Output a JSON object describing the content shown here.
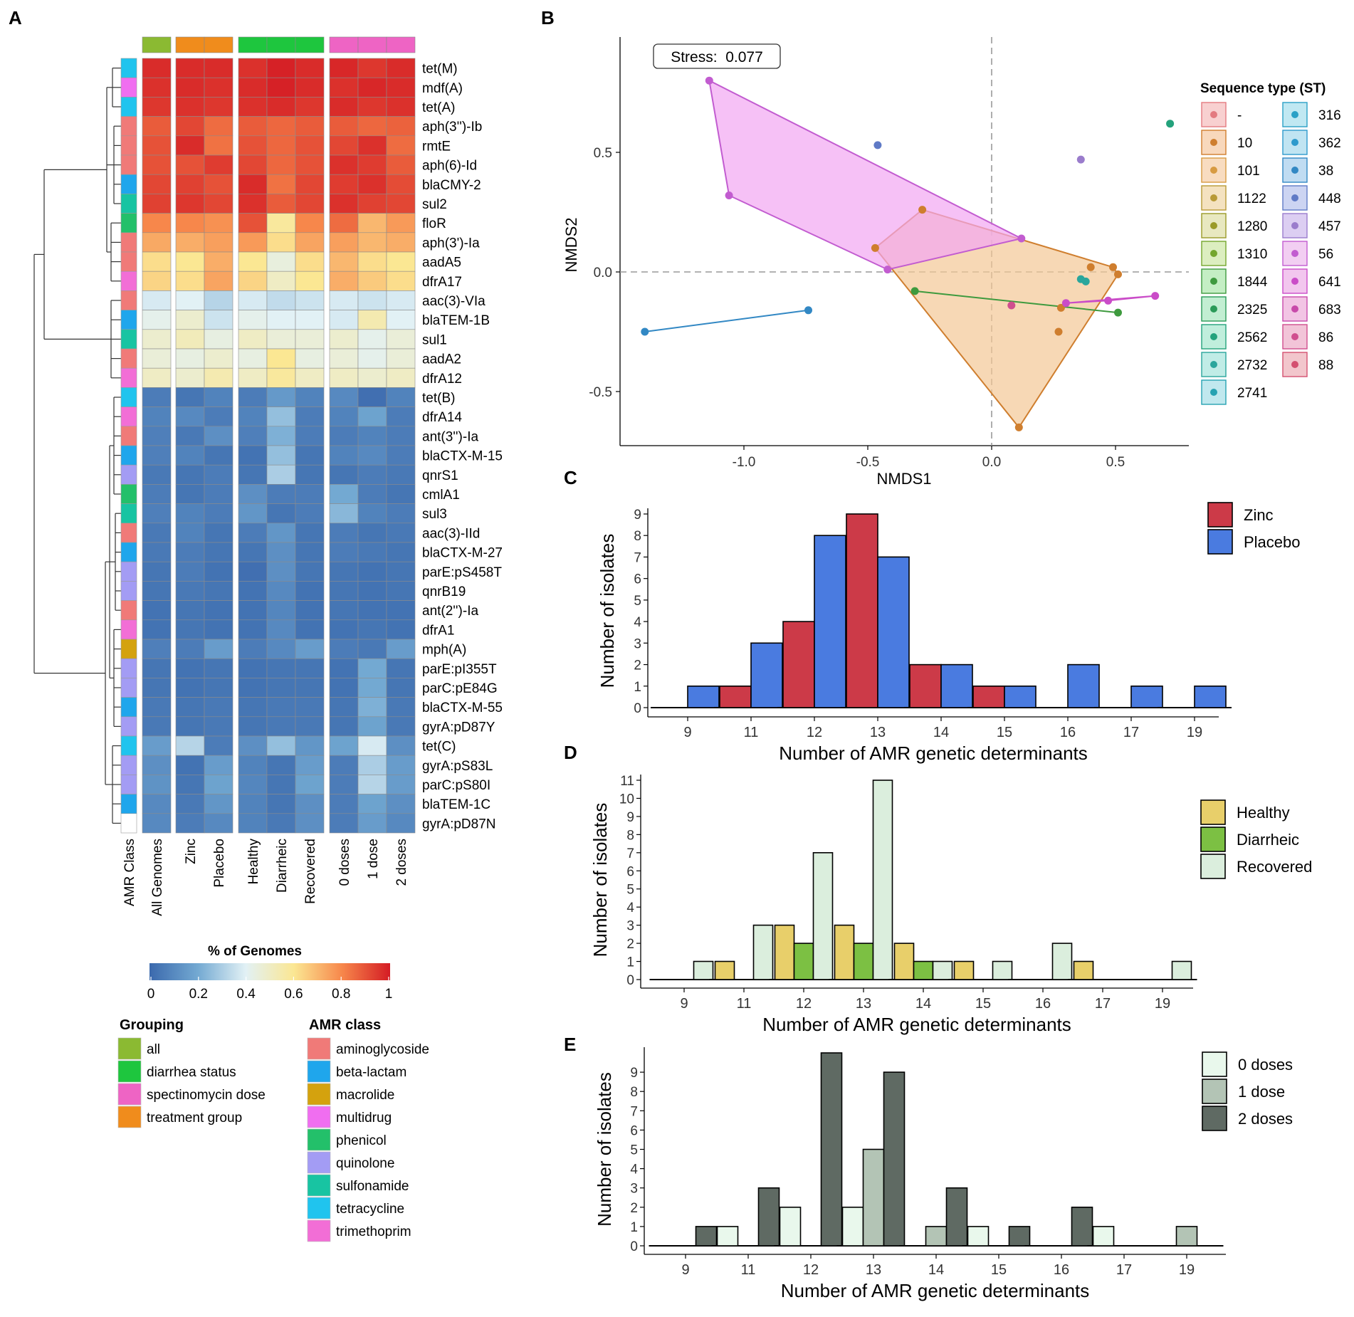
{
  "panel_labels": [
    "A",
    "B",
    "C",
    "D",
    "E"
  ],
  "chart_data": [
    {
      "panel": "A",
      "type": "heatmap",
      "columns": [
        "All Genomes",
        "Zinc",
        "Placebo",
        "Healthy",
        "Diarrheic",
        "Recovered",
        "0 doses",
        "1 dose",
        "2 doses"
      ],
      "row_label_column": "AMR Class",
      "column_groups": [
        {
          "name": "all",
          "columns": [
            "All Genomes"
          ]
        },
        {
          "name": "treatment group",
          "columns": [
            "Zinc",
            "Placebo"
          ]
        },
        {
          "name": "diarrhea status",
          "columns": [
            "Healthy",
            "Diarrheic",
            "Recovered"
          ]
        },
        {
          "name": "spectinomycin dose",
          "columns": [
            "0 doses",
            "1 dose",
            "2 doses"
          ]
        }
      ],
      "rows": [
        "tet(M)",
        "mdf(A)",
        "tet(A)",
        "aph(3'')-Ib",
        "rmtE",
        "aph(6)-Id",
        "blaCMY-2",
        "sul2",
        "floR",
        "aph(3')-Ia",
        "aadA5",
        "dfrA17",
        "aac(3)-VIa",
        "blaTEM-1B",
        "sul1",
        "aadA2",
        "dfrA12",
        "tet(B)",
        "dfrA14",
        "ant(3'')-Ia",
        "blaCTX-M-15",
        "qnrS1",
        "cmlA1",
        "sul3",
        "aac(3)-IId",
        "blaCTX-M-27",
        "parE:pS458T",
        "qnrB19",
        "ant(2'')-Ia",
        "dfrA1",
        "mph(A)",
        "parE:pI355T",
        "parC:pE84G",
        "blaCTX-M-55",
        "gyrA:pD87Y",
        "tet(C)",
        "gyrA:pS83L",
        "parC:pS80I",
        "blaTEM-1C",
        "gyrA:pD87N"
      ],
      "row_classes": [
        "tetracycline",
        "multidrug",
        "tetracycline",
        "aminoglycoside",
        "aminoglycoside",
        "aminoglycoside",
        "beta-lactam",
        "sulfonamide",
        "phenicol",
        "aminoglycoside",
        "aminoglycoside",
        "trimethoprim",
        "aminoglycoside",
        "beta-lactam",
        "sulfonamide",
        "aminoglycoside",
        "trimethoprim",
        "tetracycline",
        "trimethoprim",
        "aminoglycoside",
        "beta-lactam",
        "quinolone",
        "phenicol",
        "sulfonamide",
        "aminoglycoside",
        "beta-lactam",
        "quinolone",
        "quinolone",
        "aminoglycoside",
        "trimethoprim",
        "macrolide",
        "quinolone",
        "quinolone",
        "beta-lactam",
        "quinolone",
        "tetracycline",
        "quinolone",
        "quinolone",
        "beta-lactam",
        ""
      ],
      "values": [
        [
          0.97,
          0.97,
          0.97,
          0.96,
          0.99,
          0.97,
          0.98,
          0.95,
          0.97
        ],
        [
          0.96,
          0.97,
          0.96,
          0.97,
          0.99,
          0.97,
          0.96,
          0.98,
          0.97
        ],
        [
          0.95,
          0.96,
          0.95,
          0.96,
          0.97,
          0.95,
          0.97,
          0.95,
          0.96
        ],
        [
          0.88,
          0.92,
          0.85,
          0.88,
          0.86,
          0.88,
          0.88,
          0.86,
          0.87
        ],
        [
          0.9,
          0.97,
          0.84,
          0.9,
          0.86,
          0.9,
          0.92,
          0.96,
          0.85
        ],
        [
          0.9,
          0.9,
          0.94,
          0.92,
          0.86,
          0.9,
          0.96,
          0.94,
          0.88
        ],
        [
          0.92,
          0.93,
          0.9,
          0.97,
          0.84,
          0.92,
          0.94,
          0.96,
          0.91
        ],
        [
          0.93,
          0.95,
          0.92,
          0.96,
          0.88,
          0.92,
          0.96,
          0.93,
          0.92
        ],
        [
          0.8,
          0.8,
          0.78,
          0.9,
          0.58,
          0.8,
          0.85,
          0.7,
          0.76
        ],
        [
          0.73,
          0.72,
          0.75,
          0.76,
          0.62,
          0.74,
          0.75,
          0.7,
          0.72
        ],
        [
          0.62,
          0.6,
          0.72,
          0.6,
          0.45,
          0.62,
          0.7,
          0.62,
          0.6
        ],
        [
          0.64,
          0.62,
          0.74,
          0.64,
          0.5,
          0.6,
          0.72,
          0.66,
          0.62
        ],
        [
          0.38,
          0.4,
          0.32,
          0.38,
          0.34,
          0.36,
          0.38,
          0.36,
          0.38
        ],
        [
          0.42,
          0.48,
          0.36,
          0.42,
          0.4,
          0.4,
          0.38,
          0.54,
          0.4
        ],
        [
          0.48,
          0.52,
          0.44,
          0.5,
          0.46,
          0.46,
          0.48,
          0.42,
          0.46
        ],
        [
          0.46,
          0.44,
          0.48,
          0.44,
          0.6,
          0.44,
          0.46,
          0.42,
          0.46
        ],
        [
          0.5,
          0.48,
          0.54,
          0.5,
          0.58,
          0.5,
          0.5,
          0.48,
          0.5
        ],
        [
          0.06,
          0.04,
          0.08,
          0.06,
          0.15,
          0.08,
          0.1,
          0.02,
          0.08
        ],
        [
          0.08,
          0.1,
          0.06,
          0.08,
          0.26,
          0.06,
          0.08,
          0.18,
          0.06
        ],
        [
          0.07,
          0.05,
          0.12,
          0.07,
          0.22,
          0.06,
          0.06,
          0.08,
          0.06
        ],
        [
          0.07,
          0.08,
          0.04,
          0.03,
          0.26,
          0.04,
          0.08,
          0.1,
          0.06
        ],
        [
          0.05,
          0.04,
          0.06,
          0.04,
          0.3,
          0.04,
          0.04,
          0.06,
          0.05
        ],
        [
          0.06,
          0.04,
          0.06,
          0.12,
          0.06,
          0.06,
          0.2,
          0.06,
          0.04
        ],
        [
          0.07,
          0.08,
          0.06,
          0.14,
          0.04,
          0.06,
          0.24,
          0.08,
          0.06
        ],
        [
          0.05,
          0.08,
          0.04,
          0.06,
          0.14,
          0.04,
          0.06,
          0.04,
          0.05
        ],
        [
          0.05,
          0.06,
          0.04,
          0.04,
          0.12,
          0.04,
          0.06,
          0.05,
          0.04
        ],
        [
          0.04,
          0.06,
          0.03,
          0.02,
          0.12,
          0.04,
          0.04,
          0.03,
          0.04
        ],
        [
          0.04,
          0.05,
          0.04,
          0.03,
          0.1,
          0.03,
          0.04,
          0.03,
          0.04
        ],
        [
          0.03,
          0.04,
          0.03,
          0.03,
          0.09,
          0.03,
          0.04,
          0.03,
          0.03
        ],
        [
          0.03,
          0.04,
          0.03,
          0.03,
          0.1,
          0.03,
          0.03,
          0.04,
          0.03
        ],
        [
          0.07,
          0.06,
          0.16,
          0.06,
          0.1,
          0.16,
          0.06,
          0.05,
          0.16
        ],
        [
          0.04,
          0.03,
          0.04,
          0.03,
          0.04,
          0.04,
          0.03,
          0.2,
          0.04
        ],
        [
          0.04,
          0.03,
          0.04,
          0.03,
          0.04,
          0.04,
          0.03,
          0.2,
          0.04
        ],
        [
          0.05,
          0.04,
          0.05,
          0.04,
          0.05,
          0.05,
          0.04,
          0.22,
          0.05
        ],
        [
          0.05,
          0.04,
          0.05,
          0.04,
          0.05,
          0.05,
          0.04,
          0.18,
          0.05
        ],
        [
          0.16,
          0.32,
          0.06,
          0.12,
          0.26,
          0.14,
          0.18,
          0.38,
          0.12
        ],
        [
          0.12,
          0.03,
          0.16,
          0.08,
          0.04,
          0.16,
          0.06,
          0.3,
          0.16
        ],
        [
          0.13,
          0.04,
          0.18,
          0.09,
          0.04,
          0.18,
          0.06,
          0.32,
          0.16
        ],
        [
          0.1,
          0.05,
          0.14,
          0.08,
          0.04,
          0.12,
          0.06,
          0.18,
          0.12
        ],
        [
          0.1,
          0.06,
          0.1,
          0.08,
          0.05,
          0.12,
          0.06,
          0.16,
          0.1
        ]
      ],
      "colorbar": {
        "title": "% of Genomes",
        "ticks": [
          "0",
          "0.2",
          "0.4",
          "0.6",
          "0.8",
          "1"
        ],
        "range": [
          0,
          1
        ]
      },
      "legend_grouping": {
        "title": "Grouping",
        "items": [
          "all",
          "diarrhea status",
          "spectinomycin dose",
          "treatment group"
        ]
      },
      "legend_amr_class": {
        "title": "AMR class",
        "items": [
          "aminoglycoside",
          "beta-lactam",
          "macrolide",
          "multidrug",
          "phenicol",
          "quinolone",
          "sulfonamide",
          "tetracycline",
          "trimethoprim"
        ]
      }
    },
    {
      "panel": "B",
      "type": "scatter",
      "xlabel": "NMDS1",
      "ylabel": "NMDS2",
      "xlim": [
        -1.5,
        0.82
      ],
      "ylim": [
        -0.73,
        0.98
      ],
      "xticks": [
        "-1.0",
        "-0.5",
        "0.0",
        "0.5"
      ],
      "yticks": [
        "-0.5",
        "0.0",
        "0.5"
      ],
      "annotation": "Stress:  0.077",
      "legend_title": "Sequence type (ST)",
      "legend_entries": [
        "-",
        "10",
        "101",
        "1122",
        "1280",
        "1310",
        "1844",
        "2325",
        "2562",
        "2732",
        "2741",
        "316",
        "362",
        "38",
        "448",
        "457",
        "56",
        "641",
        "683",
        "86",
        "88"
      ],
      "points": [
        {
          "st": "56",
          "x": -1.14,
          "y": 0.8
        },
        {
          "st": "56",
          "x": -1.06,
          "y": 0.32
        },
        {
          "st": "56",
          "x": -0.42,
          "y": 0.01
        },
        {
          "st": "56",
          "x": 0.12,
          "y": 0.14
        },
        {
          "st": "448",
          "x": -0.46,
          "y": 0.53
        },
        {
          "st": "457",
          "x": 0.36,
          "y": 0.47
        },
        {
          "st": "2562",
          "x": 0.72,
          "y": 0.62
        },
        {
          "st": "10",
          "x": -0.28,
          "y": 0.26
        },
        {
          "st": "10",
          "x": -0.47,
          "y": 0.1
        },
        {
          "st": "10",
          "x": 0.4,
          "y": 0.02
        },
        {
          "st": "10",
          "x": 0.49,
          "y": 0.02
        },
        {
          "st": "10",
          "x": 0.51,
          "y": -0.01
        },
        {
          "st": "10",
          "x": 0.28,
          "y": -0.15
        },
        {
          "st": "10",
          "x": 0.27,
          "y": -0.25
        },
        {
          "st": "10",
          "x": 0.11,
          "y": -0.65
        },
        {
          "st": "2732",
          "x": 0.36,
          "y": -0.03
        },
        {
          "st": "2732",
          "x": 0.38,
          "y": -0.04
        },
        {
          "st": "1844",
          "x": -0.31,
          "y": -0.08
        },
        {
          "st": "1844",
          "x": 0.51,
          "y": -0.17
        },
        {
          "st": "38",
          "x": -0.74,
          "y": -0.16
        },
        {
          "st": "38",
          "x": -1.4,
          "y": -0.25
        },
        {
          "st": "86",
          "x": 0.08,
          "y": -0.14
        },
        {
          "st": "641",
          "x": 0.3,
          "y": -0.13
        },
        {
          "st": "641",
          "x": 0.47,
          "y": -0.12
        },
        {
          "st": "641",
          "x": 0.66,
          "y": -0.1
        }
      ]
    },
    {
      "panel": "C",
      "type": "bar",
      "categories": [
        "9",
        "11",
        "12",
        "13",
        "14",
        "15",
        "16",
        "17",
        "19"
      ],
      "series": [
        {
          "name": "Zinc",
          "color": "#cc3a48",
          "values": [
            0,
            1,
            4,
            9,
            2,
            1,
            0,
            0,
            0
          ]
        },
        {
          "name": "Placebo",
          "color": "#4a7be0",
          "values": [
            1,
            3,
            8,
            7,
            2,
            1,
            2,
            1,
            1
          ]
        }
      ],
      "xlabel": "Number of AMR genetic determinants",
      "ylabel": "Number of isolates",
      "ylim": [
        0,
        9
      ],
      "yticks": [
        "0",
        "1",
        "2",
        "3",
        "4",
        "5",
        "6",
        "7",
        "8",
        "9"
      ]
    },
    {
      "panel": "D",
      "type": "bar",
      "categories": [
        "9",
        "11",
        "12",
        "13",
        "14",
        "15",
        "16",
        "17",
        "19"
      ],
      "series": [
        {
          "name": "Healthy",
          "color": "#e8cf6a",
          "values": [
            0,
            1,
            3,
            3,
            2,
            1,
            0,
            1,
            0
          ]
        },
        {
          "name": "Diarrheic",
          "color": "#7cc043",
          "values": [
            0,
            0,
            2,
            2,
            1,
            0,
            0,
            0,
            0
          ]
        },
        {
          "name": "Recovered",
          "color": "#dbeedd",
          "values": [
            1,
            3,
            7,
            11,
            1,
            1,
            2,
            0,
            1
          ]
        }
      ],
      "xlabel": "Number of AMR genetic determinants",
      "ylabel": "Number of isolates",
      "ylim": [
        0,
        11
      ],
      "yticks": [
        "0",
        "1",
        "2",
        "3",
        "4",
        "5",
        "6",
        "7",
        "8",
        "9",
        "10",
        "11"
      ]
    },
    {
      "panel": "E",
      "type": "bar",
      "categories": [
        "9",
        "11",
        "12",
        "13",
        "14",
        "15",
        "16",
        "17",
        "19"
      ],
      "series": [
        {
          "name": "0 doses",
          "color": "#e9f8ec",
          "values": [
            0,
            1,
            2,
            2,
            0,
            1,
            0,
            1,
            0
          ]
        },
        {
          "name": "1 dose",
          "color": "#b3c4b5",
          "values": [
            0,
            0,
            0,
            5,
            1,
            0,
            0,
            0,
            1
          ]
        },
        {
          "name": "2 doses",
          "color": "#5f6a63",
          "values": [
            1,
            3,
            10,
            9,
            3,
            1,
            2,
            0,
            0
          ]
        }
      ],
      "xlabel": "Number of AMR genetic determinants",
      "ylabel": "Number of isolates",
      "ylim": [
        0,
        10
      ],
      "yticks": [
        "0",
        "1",
        "2",
        "3",
        "4",
        "5",
        "6",
        "7",
        "8",
        "9"
      ]
    }
  ],
  "colors": {
    "grouping": {
      "all": "#8bba32",
      "diarrhea status": "#1ec63e",
      "spectinomycin dose": "#ee64c4",
      "treatment group": "#f08c1c"
    },
    "amr_class": {
      "aminoglycoside": "#f07a78",
      "beta-lactam": "#1fa6ec",
      "macrolide": "#d4a20e",
      "multidrug": "#f06ef0",
      "phenicol": "#23c06a",
      "quinolone": "#a39cf4",
      "sulfonamide": "#18c4a2",
      "tetracycline": "#20c4ee",
      "trimethoprim": "#f26ed6"
    },
    "st": {
      "-": "#e37a80",
      "10": "#cf7e2e",
      "101": "#d79b42",
      "1122": "#b89a36",
      "1280": "#9a9a28",
      "1310": "#74a62e",
      "1844": "#3e9a3e",
      "2325": "#2a9a58",
      "2562": "#24a27c",
      "2732": "#2aa69c",
      "2741": "#27a2b2",
      "316": "#2aa0c6",
      "362": "#2e9acc",
      "38": "#3288c4",
      "448": "#5f7ac6",
      "457": "#9a7ccc",
      "56": "#c25cd0",
      "641": "#ca4cc8",
      "683": "#c84aaa",
      "86": "#d04e8e",
      "88": "#d45070"
    },
    "st_box": {
      "-": "#f8d0d0",
      "10": "#f8d8bc",
      "101": "#f8dcc0",
      "1122": "#f4e2c0",
      "1280": "#e8e8c0",
      "1310": "#dceec0",
      "1844": "#c4eec4",
      "2325": "#c2eed2",
      "2562": "#c0eedc",
      "2732": "#c0ece6",
      "2741": "#c0e8ee",
      "316": "#c0e8f2",
      "362": "#c0e4f2",
      "38": "#c0dcf2",
      "448": "#ccd4f2",
      "457": "#dccef2",
      "56": "#f2cef2",
      "641": "#f2c6ee",
      "683": "#f2c4e4",
      "86": "#f2c4d8",
      "88": "#f2c6cc"
    }
  }
}
